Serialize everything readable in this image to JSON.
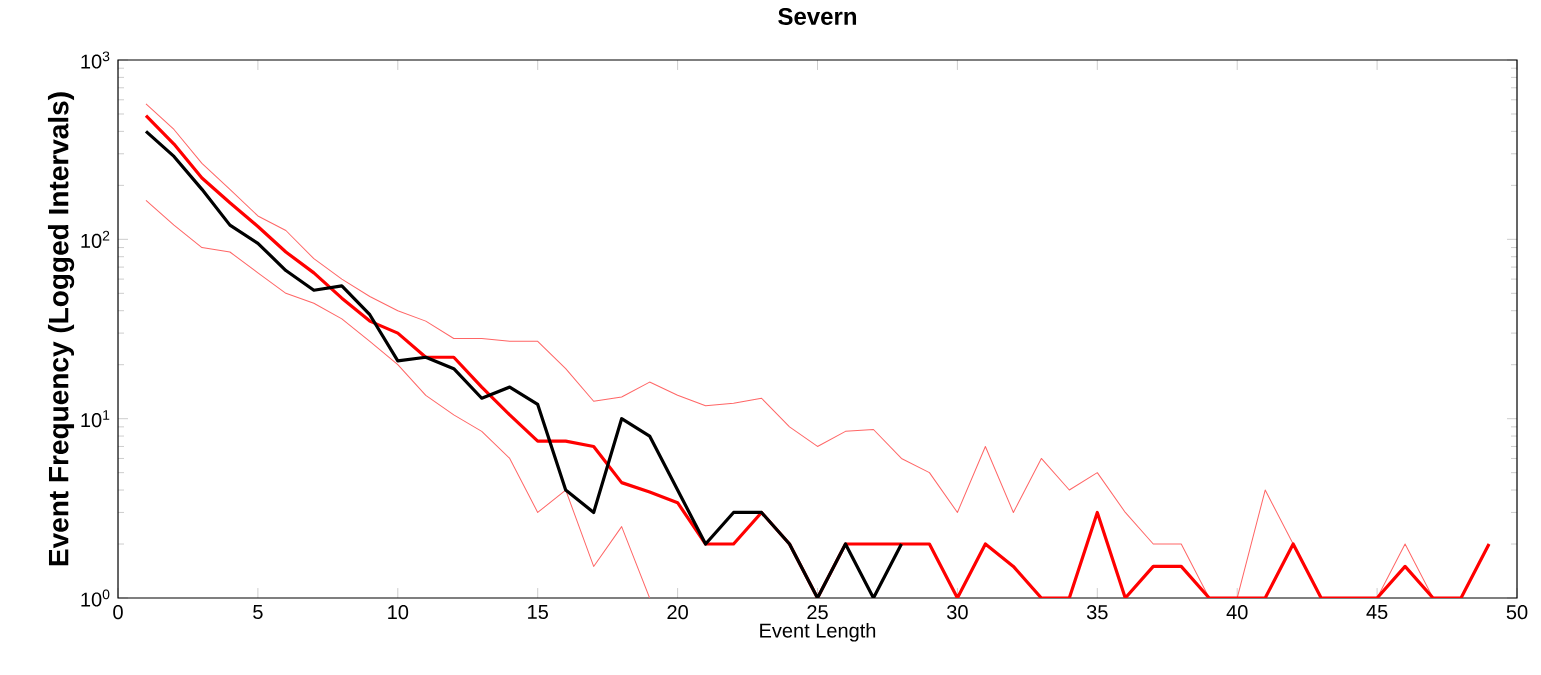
{
  "chart_data": {
    "type": "line",
    "title": "Severn",
    "xlabel": "Event Length",
    "ylabel": "Event Frequency (Logged Intervals)",
    "x": [
      1,
      2,
      3,
      4,
      5,
      6,
      7,
      8,
      9,
      10,
      11,
      12,
      13,
      14,
      15,
      16,
      17,
      18,
      19,
      20,
      21,
      22,
      23,
      24,
      25,
      26,
      27,
      28,
      29,
      30,
      31,
      32,
      33,
      34,
      35,
      36,
      37,
      38,
      39,
      40,
      41,
      42,
      43,
      44,
      45,
      46,
      47,
      48,
      49
    ],
    "series": [
      {
        "color": "#ff6666",
        "values": [
          570,
          410,
          265,
          190,
          135,
          112,
          78,
          60,
          48,
          40,
          35,
          28,
          28,
          27,
          27,
          19,
          12.5,
          13.2,
          16,
          13.5,
          11.8,
          12.2,
          13,
          9,
          7,
          8.5,
          8.7,
          6,
          5,
          3,
          7,
          3,
          6,
          4,
          5,
          3,
          2,
          2,
          1,
          1,
          4,
          2,
          1,
          1,
          1,
          2,
          1,
          1,
          2
        ]
      },
      {
        "color": "#ff6666",
        "values": [
          165,
          120,
          90,
          85,
          65,
          50,
          44,
          36,
          27,
          20,
          13.5,
          10.5,
          8.5,
          6,
          3,
          4,
          1.5,
          2.5,
          1,
          null,
          null,
          null,
          null,
          null,
          null,
          null,
          null,
          null,
          null,
          null,
          null,
          null,
          null,
          null,
          null,
          null,
          null,
          null,
          null,
          null,
          null,
          null,
          null,
          null,
          null,
          null,
          null,
          null,
          null
        ]
      },
      {
        "color": "#ff0000",
        "values": [
          490,
          340,
          220,
          160,
          118,
          85,
          65,
          47,
          35,
          30,
          22,
          22,
          15,
          10.5,
          7.5,
          7.5,
          7,
          4.4,
          3.9,
          3.4,
          2,
          2,
          3,
          2,
          1,
          2,
          2,
          2,
          2,
          1,
          2,
          1.5,
          1,
          1,
          3,
          1,
          1.5,
          1.5,
          1,
          1,
          1,
          2,
          1,
          1,
          1,
          1.5,
          1,
          1,
          2
        ]
      },
      {
        "color": "#000000",
        "x": [
          1,
          2,
          3,
          4,
          5,
          6,
          7,
          8,
          9,
          10,
          11,
          12,
          13,
          14,
          15,
          16,
          17,
          18,
          19,
          20,
          21,
          22,
          23,
          24,
          25,
          26,
          27,
          28
        ],
        "values": [
          400,
          290,
          190,
          120,
          95,
          67,
          52,
          55,
          38,
          21,
          22,
          19,
          13,
          15,
          12,
          4,
          3,
          10,
          8,
          4,
          2,
          3,
          3,
          2,
          1,
          2,
          1,
          2
        ]
      }
    ],
    "xlim": [
      0,
      50
    ],
    "ylim": [
      1,
      1000
    ],
    "log": "y",
    "xticks": [
      0,
      5,
      10,
      15,
      20,
      25,
      30,
      35,
      40,
      45,
      50
    ],
    "yticks": [
      {
        "value": 1,
        "label": "10$^{0}$"
      },
      {
        "value": 10,
        "label": "10$^{1}$"
      },
      {
        "value": 100,
        "label": "10$^{2}$"
      },
      {
        "value": 1000,
        "label": "10$^{3}$"
      }
    ]
  }
}
